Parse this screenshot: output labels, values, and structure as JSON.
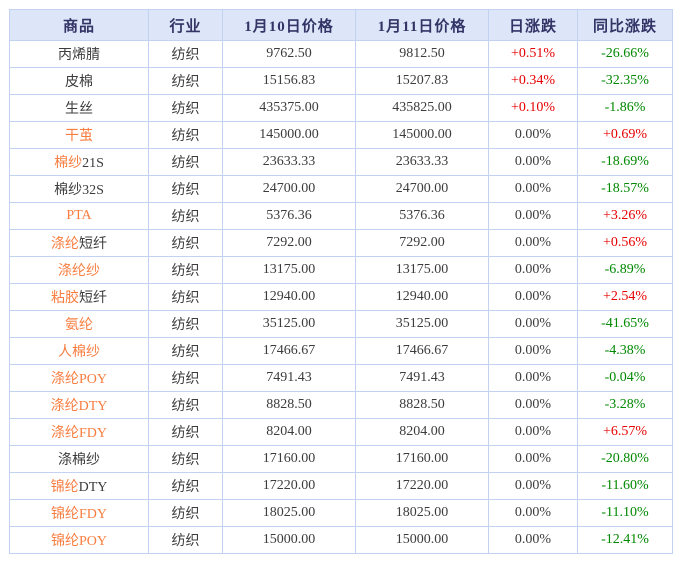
{
  "colors": {
    "header_bg": "#dce6f8",
    "header_text": "#333366",
    "border": "#c3d2f0",
    "text": "#3c3c3c",
    "link_orange": "#f87d3f",
    "up_red": "#e60000",
    "down_green": "#008800"
  },
  "table": {
    "columns": [
      {
        "key": "name",
        "label": "商品"
      },
      {
        "key": "industry",
        "label": "行业"
      },
      {
        "key": "price1",
        "label": "1月10日价格"
      },
      {
        "key": "price2",
        "label": "1月11日价格"
      },
      {
        "key": "day_change",
        "label": "日涨跌"
      },
      {
        "key": "yoy_change",
        "label": "同比涨跌"
      }
    ],
    "rows": [
      {
        "name_parts": [
          {
            "text": "丙烯腈",
            "hl": false
          }
        ],
        "industry": "纺织",
        "price1": "9762.50",
        "price2": "9812.50",
        "day_change": "+0.51%",
        "day_trend": "up",
        "yoy_change": "-26.66%",
        "yoy_trend": "down"
      },
      {
        "name_parts": [
          {
            "text": "皮棉",
            "hl": false
          }
        ],
        "industry": "纺织",
        "price1": "15156.83",
        "price2": "15207.83",
        "day_change": "+0.34%",
        "day_trend": "up",
        "yoy_change": "-32.35%",
        "yoy_trend": "down"
      },
      {
        "name_parts": [
          {
            "text": "生丝",
            "hl": false
          }
        ],
        "industry": "纺织",
        "price1": "435375.00",
        "price2": "435825.00",
        "day_change": "+0.10%",
        "day_trend": "up",
        "yoy_change": "-1.86%",
        "yoy_trend": "down"
      },
      {
        "name_parts": [
          {
            "text": "干茧",
            "hl": true
          }
        ],
        "industry": "纺织",
        "price1": "145000.00",
        "price2": "145000.00",
        "day_change": "0.00%",
        "day_trend": "flat",
        "yoy_change": "+0.69%",
        "yoy_trend": "up"
      },
      {
        "name_parts": [
          {
            "text": "棉纱",
            "hl": true
          },
          {
            "text": "21S",
            "hl": false
          }
        ],
        "industry": "纺织",
        "price1": "23633.33",
        "price2": "23633.33",
        "day_change": "0.00%",
        "day_trend": "flat",
        "yoy_change": "-18.69%",
        "yoy_trend": "down"
      },
      {
        "name_parts": [
          {
            "text": "棉纱32S",
            "hl": false
          }
        ],
        "industry": "纺织",
        "price1": "24700.00",
        "price2": "24700.00",
        "day_change": "0.00%",
        "day_trend": "flat",
        "yoy_change": "-18.57%",
        "yoy_trend": "down"
      },
      {
        "name_parts": [
          {
            "text": "PTA",
            "hl": true
          }
        ],
        "industry": "纺织",
        "price1": "5376.36",
        "price2": "5376.36",
        "day_change": "0.00%",
        "day_trend": "flat",
        "yoy_change": "+3.26%",
        "yoy_trend": "up"
      },
      {
        "name_parts": [
          {
            "text": "涤纶",
            "hl": true
          },
          {
            "text": "短纤",
            "hl": false
          }
        ],
        "industry": "纺织",
        "price1": "7292.00",
        "price2": "7292.00",
        "day_change": "0.00%",
        "day_trend": "flat",
        "yoy_change": "+0.56%",
        "yoy_trend": "up"
      },
      {
        "name_parts": [
          {
            "text": "涤纶纱",
            "hl": true
          }
        ],
        "industry": "纺织",
        "price1": "13175.00",
        "price2": "13175.00",
        "day_change": "0.00%",
        "day_trend": "flat",
        "yoy_change": "-6.89%",
        "yoy_trend": "down"
      },
      {
        "name_parts": [
          {
            "text": "粘胶",
            "hl": true
          },
          {
            "text": "短纤",
            "hl": false
          }
        ],
        "industry": "纺织",
        "price1": "12940.00",
        "price2": "12940.00",
        "day_change": "0.00%",
        "day_trend": "flat",
        "yoy_change": "+2.54%",
        "yoy_trend": "up"
      },
      {
        "name_parts": [
          {
            "text": "氨纶",
            "hl": true
          }
        ],
        "industry": "纺织",
        "price1": "35125.00",
        "price2": "35125.00",
        "day_change": "0.00%",
        "day_trend": "flat",
        "yoy_change": "-41.65%",
        "yoy_trend": "down"
      },
      {
        "name_parts": [
          {
            "text": "人棉纱",
            "hl": true
          }
        ],
        "industry": "纺织",
        "price1": "17466.67",
        "price2": "17466.67",
        "day_change": "0.00%",
        "day_trend": "flat",
        "yoy_change": "-4.38%",
        "yoy_trend": "down"
      },
      {
        "name_parts": [
          {
            "text": "涤纶POY",
            "hl": true
          }
        ],
        "industry": "纺织",
        "price1": "7491.43",
        "price2": "7491.43",
        "day_change": "0.00%",
        "day_trend": "flat",
        "yoy_change": "-0.04%",
        "yoy_trend": "down"
      },
      {
        "name_parts": [
          {
            "text": "涤纶DTY",
            "hl": true
          }
        ],
        "industry": "纺织",
        "price1": "8828.50",
        "price2": "8828.50",
        "day_change": "0.00%",
        "day_trend": "flat",
        "yoy_change": "-3.28%",
        "yoy_trend": "down"
      },
      {
        "name_parts": [
          {
            "text": "涤纶FDY",
            "hl": true
          }
        ],
        "industry": "纺织",
        "price1": "8204.00",
        "price2": "8204.00",
        "day_change": "0.00%",
        "day_trend": "flat",
        "yoy_change": "+6.57%",
        "yoy_trend": "up"
      },
      {
        "name_parts": [
          {
            "text": "涤棉纱",
            "hl": false
          }
        ],
        "industry": "纺织",
        "price1": "17160.00",
        "price2": "17160.00",
        "day_change": "0.00%",
        "day_trend": "flat",
        "yoy_change": "-20.80%",
        "yoy_trend": "down"
      },
      {
        "name_parts": [
          {
            "text": "锦纶",
            "hl": true
          },
          {
            "text": "DTY",
            "hl": false
          }
        ],
        "industry": "纺织",
        "price1": "17220.00",
        "price2": "17220.00",
        "day_change": "0.00%",
        "day_trend": "flat",
        "yoy_change": "-11.60%",
        "yoy_trend": "down"
      },
      {
        "name_parts": [
          {
            "text": "锦纶FDY",
            "hl": true
          }
        ],
        "industry": "纺织",
        "price1": "18025.00",
        "price2": "18025.00",
        "day_change": "0.00%",
        "day_trend": "flat",
        "yoy_change": "-11.10%",
        "yoy_trend": "down"
      },
      {
        "name_parts": [
          {
            "text": "锦纶POY",
            "hl": true
          }
        ],
        "industry": "纺织",
        "price1": "15000.00",
        "price2": "15000.00",
        "day_change": "0.00%",
        "day_trend": "flat",
        "yoy_change": "-12.41%",
        "yoy_trend": "down"
      }
    ]
  }
}
